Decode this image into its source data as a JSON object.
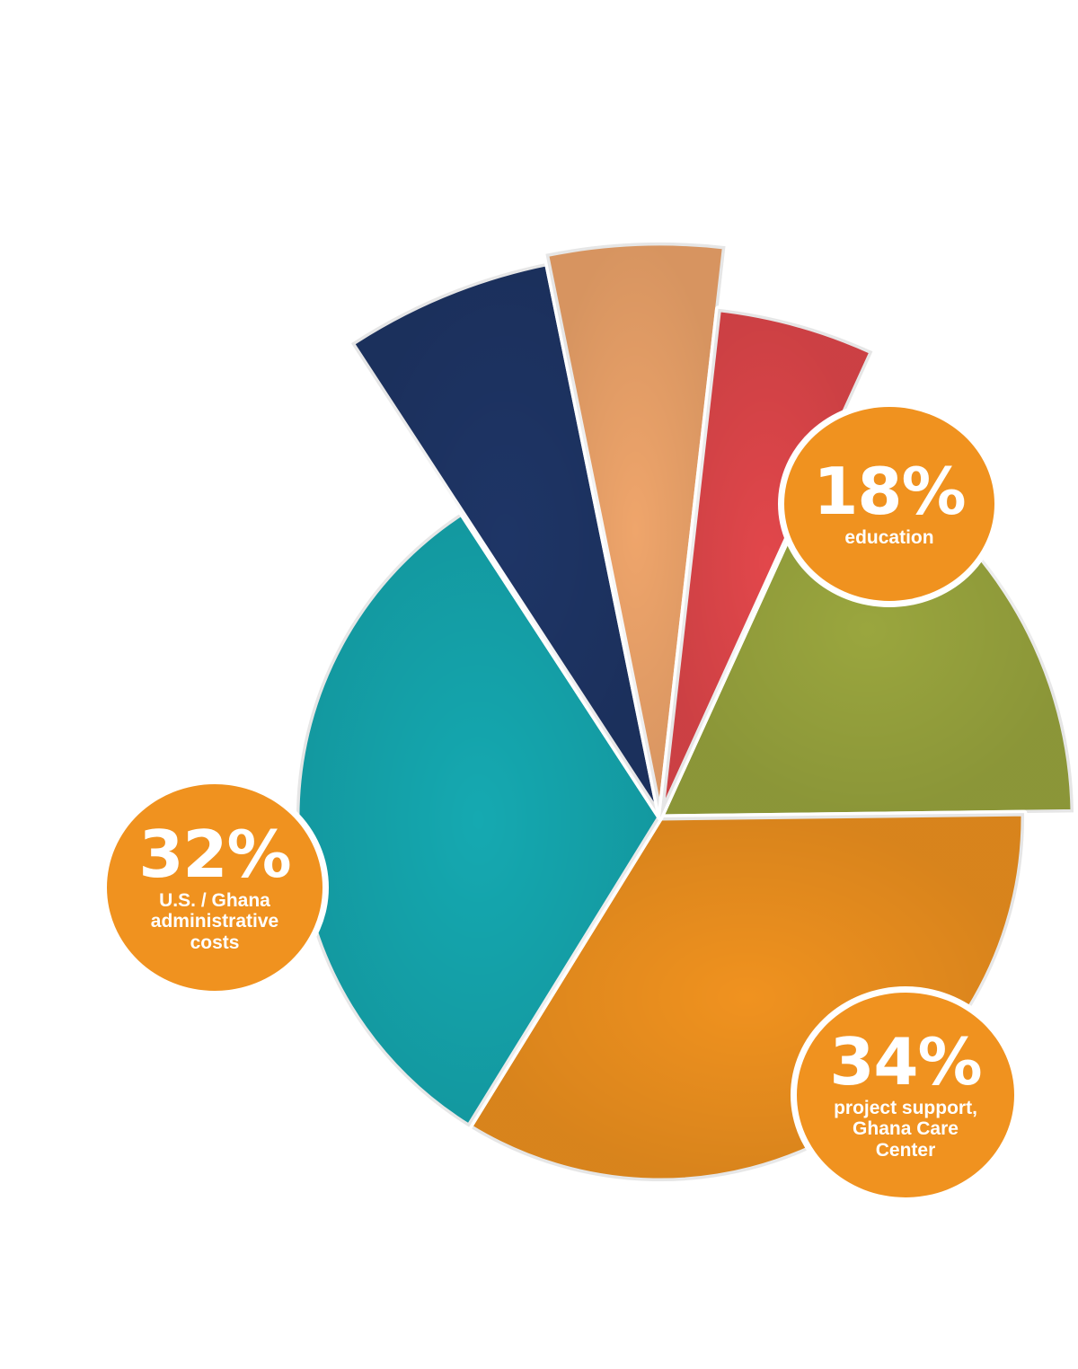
{
  "chart_data": {
    "type": "pie",
    "slices": [
      {
        "value": 18,
        "label": "18%",
        "caption": "education",
        "color": "#9aa63e"
      },
      {
        "value": 34,
        "label": "34%",
        "caption": "project support, Ghana Care Center",
        "color": "#f0921f"
      },
      {
        "value": 32,
        "label": "32%",
        "caption": "U.S. / Ghana administrative costs",
        "color": "#15a9b1"
      },
      {
        "value": 6,
        "label": "",
        "caption": "",
        "color": "#1e3566"
      },
      {
        "value": 5,
        "label": "",
        "caption": "",
        "color": "#efa56b"
      },
      {
        "value": 5,
        "label": "",
        "caption": "",
        "color": "#e2474b"
      }
    ]
  },
  "badges": [
    {
      "percent": "18%",
      "lines": [
        "education"
      ]
    },
    {
      "percent": "34%",
      "lines": [
        "project support,",
        "Ghana Care",
        "Center"
      ]
    },
    {
      "percent": "32%",
      "lines": [
        "U.S. / Ghana",
        "administrative",
        "costs"
      ]
    }
  ]
}
